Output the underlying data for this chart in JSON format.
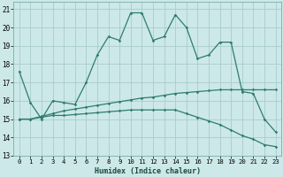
{
  "xlabel": "Humidex (Indice chaleur)",
  "xlim": [
    -0.5,
    23.5
  ],
  "ylim": [
    13,
    21.4
  ],
  "yticks": [
    13,
    14,
    15,
    16,
    17,
    18,
    19,
    20,
    21
  ],
  "xticks": [
    0,
    1,
    2,
    3,
    4,
    5,
    6,
    7,
    8,
    9,
    10,
    11,
    12,
    13,
    14,
    15,
    16,
    17,
    18,
    19,
    20,
    21,
    22,
    23
  ],
  "bg_color": "#cce8e8",
  "grid_color": "#aacccc",
  "line_color": "#2e7d6e",
  "line1_y": [
    17.6,
    15.9,
    15.0,
    16.0,
    15.9,
    15.8,
    17.0,
    18.5,
    19.5,
    19.3,
    20.8,
    20.8,
    19.3,
    19.5,
    20.7,
    20.0,
    18.3,
    18.5,
    19.2,
    19.2,
    16.5,
    16.4,
    15.0,
    14.3
  ],
  "line2_y": [
    15.0,
    15.0,
    15.15,
    15.3,
    15.45,
    15.55,
    15.65,
    15.75,
    15.85,
    15.95,
    16.05,
    16.15,
    16.2,
    16.3,
    16.4,
    16.45,
    16.5,
    16.55,
    16.6,
    16.6,
    16.6,
    16.6,
    16.6,
    16.6
  ],
  "line3_y": [
    15.0,
    15.0,
    15.1,
    15.2,
    15.2,
    15.25,
    15.3,
    15.35,
    15.4,
    15.45,
    15.5,
    15.5,
    15.5,
    15.5,
    15.5,
    15.3,
    15.1,
    14.9,
    14.7,
    14.4,
    14.1,
    13.9,
    13.6,
    13.5
  ]
}
